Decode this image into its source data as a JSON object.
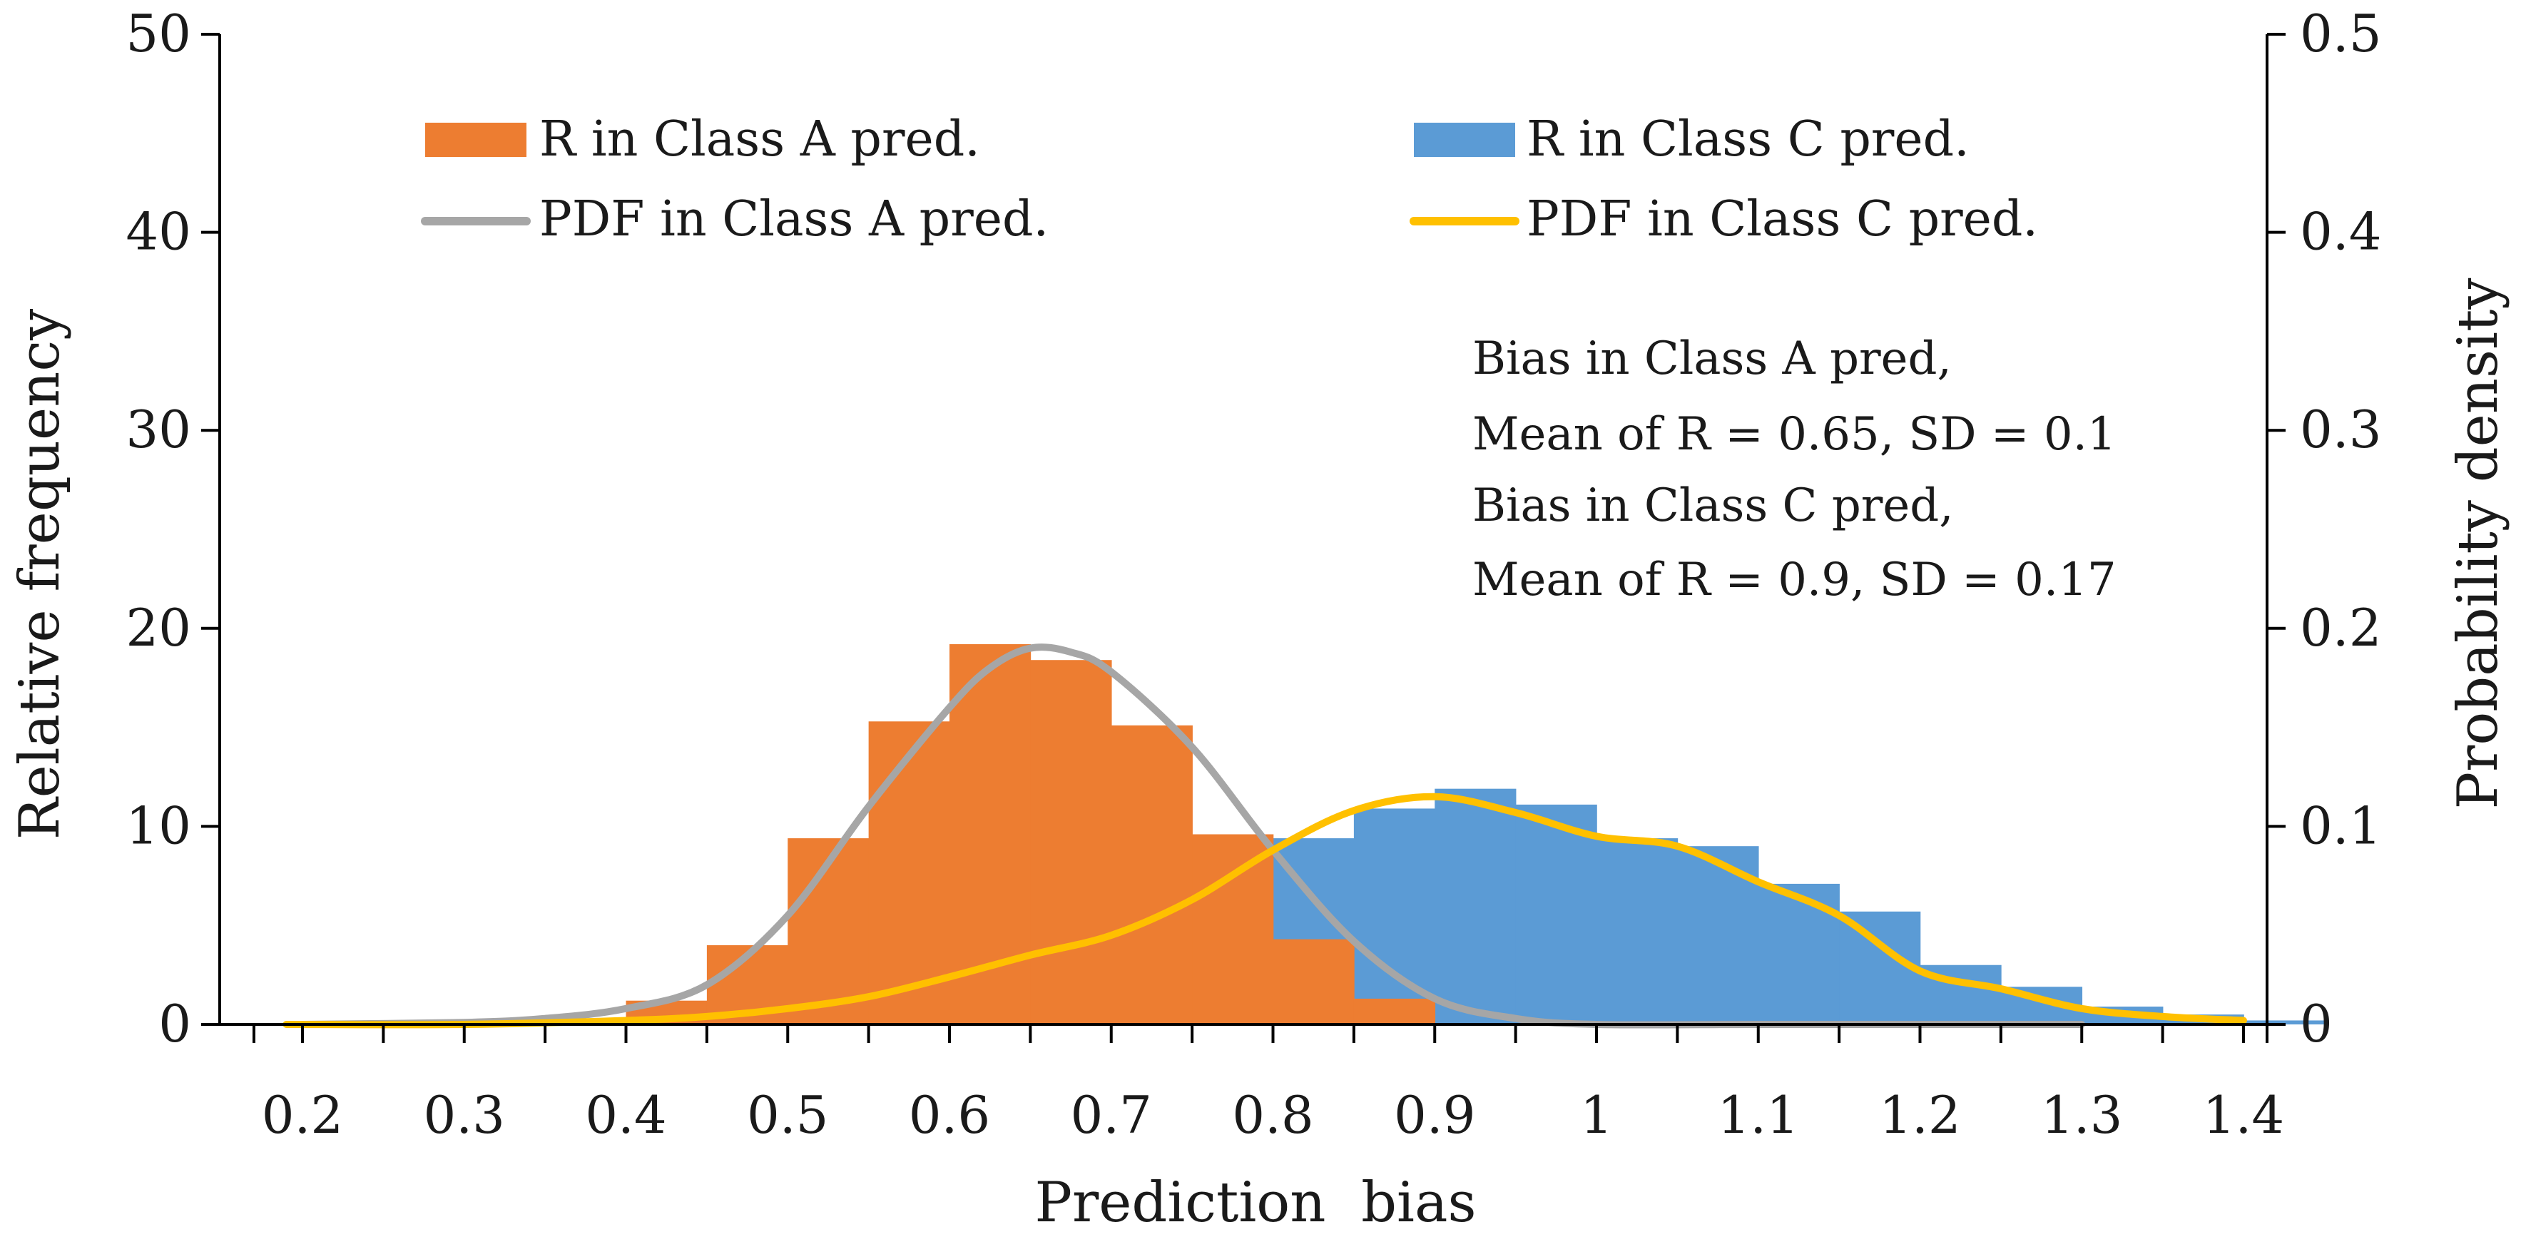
{
  "chart_data": {
    "type": "bar",
    "title": "",
    "xlabel": "Prediction  bias",
    "ylabel_left": "Relative frequency",
    "ylabel_right": "Probability density",
    "xlim": [
      0.17,
      1.42
    ],
    "ylim_left": [
      0,
      50
    ],
    "ylim_right": [
      0,
      0.5
    ],
    "x_ticks": [
      0.2,
      0.3,
      0.4,
      0.5,
      0.6,
      0.7,
      0.8,
      0.9,
      1.0,
      1.1,
      1.2,
      1.3,
      1.4
    ],
    "x_tick_labels": [
      "0.2",
      "0.3",
      "0.4",
      "0.5",
      "0.6",
      "0.7",
      "0.8",
      "0.9",
      "1",
      "1.1",
      "1.2",
      "1.3",
      "1.4"
    ],
    "y_left_ticks": [
      0,
      10,
      20,
      30,
      40,
      50
    ],
    "y_left_tick_labels": [
      "0",
      "10",
      "20",
      "30",
      "40",
      "50"
    ],
    "y_right_ticks": [
      0,
      0.1,
      0.2,
      0.3,
      0.4,
      0.5
    ],
    "y_right_tick_labels": [
      "0",
      "0.1",
      "0.2",
      "0.3",
      "0.4",
      "0.5"
    ],
    "bin_width": 0.05,
    "series": [
      {
        "name": "R in Class A pred.",
        "kind": "bar",
        "axis": "left",
        "color": "#ED7D31",
        "bins": [
          0.35,
          0.4,
          0.45,
          0.5,
          0.55,
          0.6,
          0.65,
          0.7,
          0.75,
          0.8,
          0.85
        ],
        "values": [
          0.2,
          1.2,
          4.0,
          9.4,
          15.3,
          19.2,
          18.4,
          15.1,
          9.6,
          4.3,
          1.3
        ]
      },
      {
        "name": "R in Class C pred.",
        "kind": "bar",
        "axis": "left",
        "color": "#5B9BD5",
        "bins": [
          0.4,
          0.45,
          0.5,
          0.55,
          0.6,
          0.65,
          0.7,
          0.75,
          0.8,
          0.85,
          0.9,
          0.95,
          1.0,
          1.05,
          1.1,
          1.15,
          1.2,
          1.25,
          1.3,
          1.35,
          1.4
        ],
        "values": [
          0.2,
          0.3,
          0.6,
          1.4,
          2.0,
          3.3,
          4.4,
          6.3,
          9.4,
          10.9,
          11.9,
          11.1,
          9.4,
          9.0,
          7.1,
          5.7,
          3.0,
          1.9,
          0.9,
          0.5,
          0.2
        ]
      },
      {
        "name": "PDF in Class A pred.",
        "kind": "line",
        "axis": "right",
        "color": "#A6A6A6",
        "x": [
          0.2,
          0.3,
          0.35,
          0.4,
          0.45,
          0.5,
          0.55,
          0.6,
          0.625,
          0.65,
          0.675,
          0.7,
          0.75,
          0.8,
          0.85,
          0.9,
          0.95,
          1.0,
          1.1,
          1.2,
          1.3
        ],
        "y": [
          0.0,
          0.001,
          0.003,
          0.008,
          0.02,
          0.055,
          0.11,
          0.16,
          0.18,
          0.19,
          0.188,
          0.178,
          0.14,
          0.088,
          0.042,
          0.013,
          0.003,
          0.0,
          0.0,
          0.0,
          0.0
        ]
      },
      {
        "name": "PDF in Class C pred.",
        "kind": "line",
        "axis": "right",
        "color": "#FFC000",
        "x": [
          0.19,
          0.3,
          0.4,
          0.45,
          0.5,
          0.55,
          0.6,
          0.65,
          0.7,
          0.75,
          0.8,
          0.85,
          0.9,
          0.95,
          1.0,
          1.05,
          1.1,
          1.15,
          1.2,
          1.25,
          1.3,
          1.35,
          1.4
        ],
        "y": [
          0.0,
          0.0,
          0.002,
          0.004,
          0.008,
          0.014,
          0.024,
          0.035,
          0.045,
          0.063,
          0.088,
          0.108,
          0.115,
          0.107,
          0.095,
          0.09,
          0.072,
          0.055,
          0.027,
          0.018,
          0.008,
          0.004,
          0.002
        ]
      }
    ],
    "legend_position": "top",
    "annotations": [
      "Bias in Class A pred,",
      "Mean of R = 0.65, SD = 0.1",
      "Bias in Class C pred,",
      "Mean of R = 0.9, SD = 0.17"
    ]
  }
}
